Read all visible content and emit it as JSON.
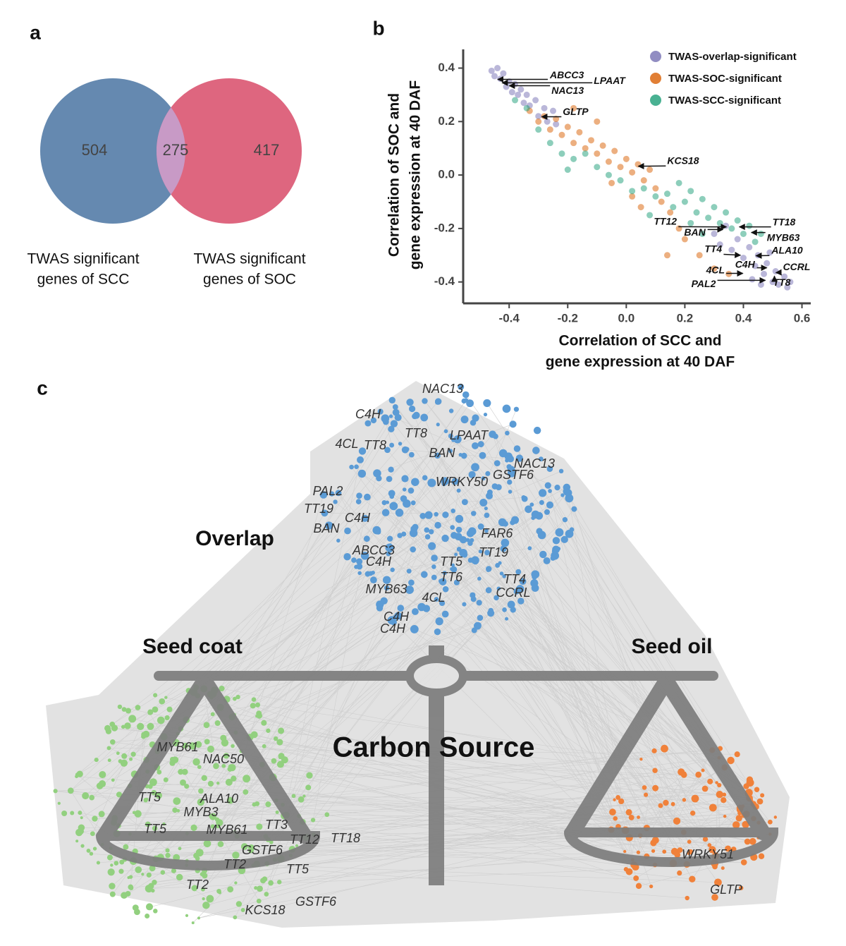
{
  "chart_data": [
    {
      "type": "venn",
      "panel": "a",
      "sets": [
        {
          "name": [
            "TWAS significant",
            "genes of SCC"
          ],
          "color": "#6589b0"
        },
        {
          "name": [
            "TWAS significant",
            "genes of SOC"
          ],
          "color": "#de667f"
        }
      ],
      "overlap_color": "#c89ac6",
      "values": [
        504,
        275,
        417
      ]
    },
    {
      "type": "scatter",
      "panel": "b",
      "xlabel": [
        "Correlation of SCC and",
        "gene expression at 40 DAF"
      ],
      "ylabel": [
        "Correlation of SOC and",
        "gene expression at 40 DAF"
      ],
      "xlim": [
        -0.557,
        0.63
      ],
      "ylim": [
        -0.48,
        0.47
      ],
      "xticks": [
        -0.4,
        -0.2,
        {
          "value": 0,
          "label": "0.0"
        },
        0.2,
        0.4,
        0.6
      ],
      "yticks": [
        -0.4,
        -0.2,
        {
          "value": 0,
          "label": "0.0"
        },
        0.2,
        0.4
      ],
      "legend": "upper right",
      "series": [
        {
          "name": "TWAS-overlap-significant",
          "color": "#7570b3",
          "x": [
            -0.46,
            -0.45,
            -0.44,
            -0.43,
            -0.42,
            -0.41,
            -0.4,
            -0.39,
            -0.38,
            -0.37,
            -0.36,
            -0.35,
            -0.34,
            -0.33,
            -0.31,
            -0.3,
            -0.28,
            -0.27,
            -0.25,
            -0.24,
            0.3,
            0.32,
            0.34,
            0.36,
            0.38,
            0.4,
            0.42,
            0.44,
            0.45,
            0.47,
            0.48,
            0.5,
            0.51,
            0.52,
            0.54,
            0.55,
            0.56,
            0.46,
            0.43,
            0.49
          ],
          "values": [
            0.39,
            0.37,
            0.4,
            0.36,
            0.38,
            0.33,
            0.35,
            0.31,
            0.34,
            0.3,
            0.32,
            0.27,
            0.3,
            0.26,
            0.28,
            0.22,
            0.25,
            0.2,
            0.24,
            0.19,
            -0.22,
            -0.26,
            -0.19,
            -0.28,
            -0.24,
            -0.31,
            -0.27,
            -0.34,
            -0.3,
            -0.37,
            -0.33,
            -0.4,
            -0.36,
            -0.41,
            -0.38,
            -0.42,
            -0.4,
            -0.41,
            -0.39,
            -0.29
          ]
        },
        {
          "name": "TWAS-SOC-significant",
          "color": "#d95f02",
          "x": [
            -0.33,
            -0.3,
            -0.28,
            -0.26,
            -0.24,
            -0.22,
            -0.2,
            -0.18,
            -0.16,
            -0.14,
            -0.12,
            -0.1,
            -0.08,
            -0.06,
            -0.04,
            -0.02,
            0.0,
            0.02,
            0.04,
            0.06,
            0.08,
            0.1,
            0.12,
            0.15,
            0.18,
            0.2,
            0.25,
            0.3,
            0.35,
            0.05,
            0.02,
            -0.05,
            -0.18,
            -0.1,
            0.14
          ],
          "values": [
            0.24,
            0.2,
            0.22,
            0.17,
            0.21,
            0.15,
            0.18,
            0.12,
            0.16,
            0.1,
            0.13,
            0.08,
            0.11,
            0.05,
            0.09,
            0.03,
            0.06,
            0.01,
            0.04,
            -0.02,
            0.02,
            -0.05,
            -0.1,
            -0.14,
            -0.2,
            -0.24,
            -0.3,
            -0.35,
            -0.37,
            -0.12,
            -0.08,
            -0.03,
            0.25,
            0.2,
            -0.3
          ]
        },
        {
          "name": "TWAS-SCC-significant",
          "color": "#1b9e77",
          "x": [
            -0.38,
            -0.34,
            -0.3,
            -0.26,
            -0.22,
            -0.18,
            -0.14,
            -0.1,
            -0.06,
            -0.02,
            0.02,
            0.06,
            0.1,
            0.14,
            0.18,
            0.2,
            0.22,
            0.24,
            0.26,
            0.28,
            0.3,
            0.32,
            0.34,
            0.36,
            0.38,
            0.4,
            0.42,
            0.44,
            0.22,
            0.16,
            0.08,
            -0.2,
            0.26,
            0.46
          ],
          "values": [
            0.28,
            0.25,
            0.17,
            0.12,
            0.08,
            0.06,
            0.08,
            0.03,
            0.0,
            -0.02,
            -0.06,
            -0.05,
            -0.08,
            -0.07,
            -0.03,
            -0.1,
            -0.06,
            -0.14,
            -0.09,
            -0.16,
            -0.12,
            -0.18,
            -0.14,
            -0.2,
            -0.17,
            -0.22,
            -0.19,
            -0.25,
            -0.18,
            -0.12,
            -0.15,
            0.02,
            -0.22,
            -0.22
          ]
        }
      ],
      "annotations": [
        {
          "text": "ABCC3",
          "x": -0.439,
          "y": 0.358
        },
        {
          "text": "LPAAT",
          "x": -0.424,
          "y": 0.345
        },
        {
          "text": "NAC13",
          "x": -0.4,
          "y": 0.334
        },
        {
          "text": "GLTP",
          "x": -0.289,
          "y": 0.218
        },
        {
          "text": "KCS18",
          "x": 0.041,
          "y": 0.033
        },
        {
          "text": "TT12",
          "x": 0.342,
          "y": -0.194
        },
        {
          "text": "BAN",
          "x": 0.33,
          "y": -0.204
        },
        {
          "text": "TT18",
          "x": 0.386,
          "y": -0.194
        },
        {
          "text": "MYB63",
          "x": 0.427,
          "y": -0.215
        },
        {
          "text": "TT4",
          "x": 0.39,
          "y": -0.3
        },
        {
          "text": "ALA10",
          "x": 0.443,
          "y": -0.302
        },
        {
          "text": "C4H",
          "x": 0.48,
          "y": -0.347
        },
        {
          "text": "4CL",
          "x": 0.398,
          "y": -0.368
        },
        {
          "text": "CCRL",
          "x": 0.511,
          "y": -0.365
        },
        {
          "text": "PAL2",
          "x": 0.475,
          "y": -0.394
        },
        {
          "text": "TT8",
          "x": 0.506,
          "y": -0.378
        }
      ]
    },
    {
      "type": "network",
      "panel": "c",
      "title": "Carbon Source",
      "groups": [
        {
          "name": "Overlap",
          "color": "#5b9bd5",
          "genes": [
            "NAC13",
            "C4H",
            "TT8",
            "LPAAT",
            "4CL",
            "TT8",
            "BAN",
            "NAC13",
            "GSTF6",
            "WRKY50",
            "PAL2",
            "TT19",
            "C4H",
            "BAN",
            "FAR6",
            "ABCC3",
            "TT19",
            "C4H",
            "TT5",
            "TT6",
            "TT4",
            "MYB63",
            "CCRL",
            "4CL",
            "C4H",
            "C4H"
          ]
        },
        {
          "name": "Seed coat",
          "color": "#92d07f",
          "genes": [
            "MYB61",
            "NAC50",
            "TT5",
            "ALA10",
            "MYB3",
            "TT5",
            "MYB61",
            "TT3",
            "GSTF6",
            "TT12",
            "TT18",
            "TT2",
            "TT5",
            "TT2",
            "KCS18",
            "GSTF6"
          ]
        },
        {
          "name": "Seed oil",
          "color": "#f0813a",
          "genes": [
            "WRKY51",
            "GLTP"
          ]
        }
      ]
    }
  ]
}
